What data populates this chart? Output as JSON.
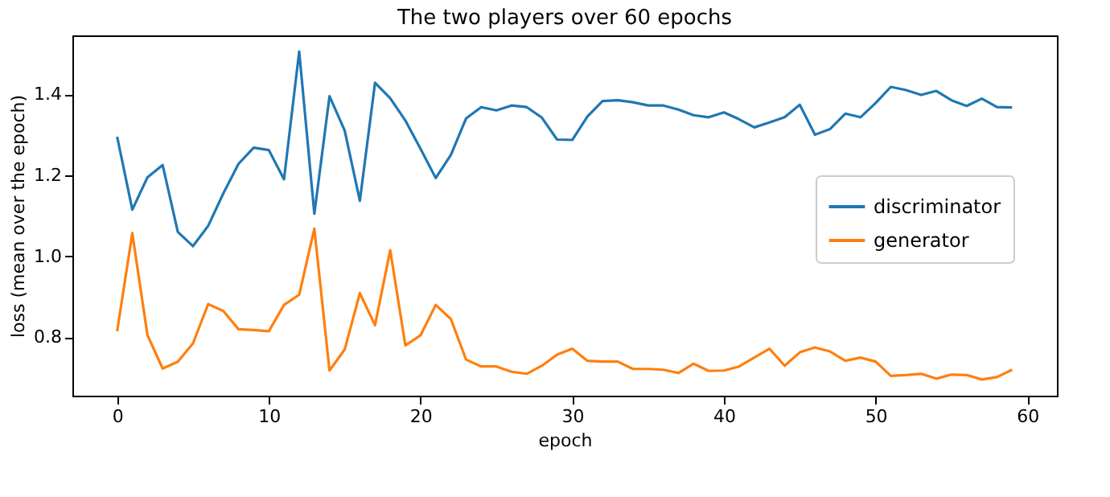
{
  "chart_data": {
    "type": "line",
    "title": "The two players over 60 epochs",
    "xlabel": "epoch",
    "ylabel": "loss (mean over the epoch)",
    "x": [
      0,
      1,
      2,
      3,
      4,
      5,
      6,
      7,
      8,
      9,
      10,
      11,
      12,
      13,
      14,
      15,
      16,
      17,
      18,
      19,
      20,
      21,
      22,
      23,
      24,
      25,
      26,
      27,
      28,
      29,
      30,
      31,
      32,
      33,
      34,
      35,
      36,
      37,
      38,
      39,
      40,
      41,
      42,
      43,
      44,
      45,
      46,
      47,
      48,
      49,
      50,
      51,
      52,
      53,
      54,
      55,
      56,
      57,
      58,
      59
    ],
    "series": [
      {
        "name": "discriminator",
        "color": "#1f77b4",
        "values": [
          1.295,
          1.115,
          1.195,
          1.225,
          1.06,
          1.025,
          1.075,
          1.155,
          1.228,
          1.268,
          1.262,
          1.19,
          1.505,
          1.105,
          1.395,
          1.31,
          1.137,
          1.428,
          1.39,
          1.335,
          1.265,
          1.193,
          1.25,
          1.34,
          1.368,
          1.36,
          1.372,
          1.368,
          1.342,
          1.288,
          1.287,
          1.345,
          1.383,
          1.385,
          1.38,
          1.372,
          1.372,
          1.362,
          1.348,
          1.343,
          1.355,
          1.338,
          1.318,
          1.33,
          1.343,
          1.374,
          1.3,
          1.314,
          1.352,
          1.343,
          1.378,
          1.418,
          1.41,
          1.398,
          1.408,
          1.385,
          1.371,
          1.389,
          1.368,
          1.367
        ]
      },
      {
        "name": "generator",
        "color": "#ff7f0e",
        "values": [
          0.815,
          1.057,
          0.805,
          0.723,
          0.74,
          0.785,
          0.882,
          0.865,
          0.82,
          0.818,
          0.815,
          0.88,
          0.905,
          1.068,
          0.718,
          0.77,
          0.909,
          0.83,
          1.015,
          0.78,
          0.805,
          0.88,
          0.845,
          0.745,
          0.728,
          0.728,
          0.715,
          0.71,
          0.73,
          0.757,
          0.772,
          0.742,
          0.74,
          0.74,
          0.722,
          0.722,
          0.72,
          0.712,
          0.735,
          0.717,
          0.718,
          0.728,
          0.75,
          0.772,
          0.73,
          0.763,
          0.775,
          0.765,
          0.742,
          0.75,
          0.74,
          0.705,
          0.707,
          0.71,
          0.698,
          0.708,
          0.707,
          0.696,
          0.702,
          0.72
        ]
      }
    ],
    "xlim": [
      -2.95,
      61.95
    ],
    "ylim": [
      0.656,
      1.545
    ],
    "xticks": [
      0,
      10,
      20,
      30,
      40,
      50,
      60
    ],
    "yticks": [
      0.8,
      {
        "value": 1,
        "label": "1.0"
      },
      1.2,
      1.4
    ],
    "grid": false,
    "legend": "right",
    "marker": "none",
    "line_style": "solid"
  }
}
